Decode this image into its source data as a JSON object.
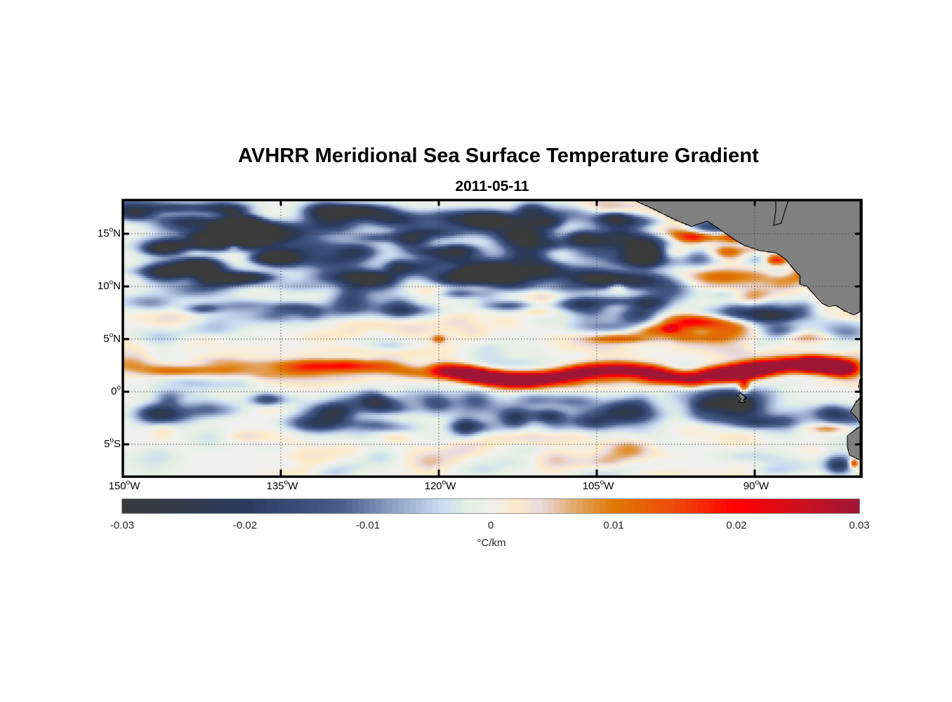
{
  "chart_data": {
    "type": "heatmap",
    "title": "AVHRR Meridional Sea Surface Temperature Gradient",
    "subtitle": "2011-05-11",
    "projection": "equirectangular",
    "lon_range": [
      -150,
      -80
    ],
    "lat_range": [
      -8,
      18
    ],
    "x_ticks": [
      {
        "value": -150,
        "label": "150",
        "suffix": "W"
      },
      {
        "value": -135,
        "label": "135",
        "suffix": "W"
      },
      {
        "value": -120,
        "label": "120",
        "suffix": "W"
      },
      {
        "value": -105,
        "label": "105",
        "suffix": "W"
      },
      {
        "value": -90,
        "label": "90",
        "suffix": "W"
      }
    ],
    "y_ticks": [
      {
        "value": 15,
        "label": "15",
        "suffix": "N"
      },
      {
        "value": 10,
        "label": "10",
        "suffix": "N"
      },
      {
        "value": 5,
        "label": "5",
        "suffix": "N"
      },
      {
        "value": 0,
        "label": "0",
        "suffix": ""
      },
      {
        "value": -5,
        "label": "5",
        "suffix": "S"
      }
    ],
    "grid": true,
    "colorbar": {
      "orientation": "horizontal",
      "location": "bottom",
      "range": [
        -0.03,
        0.03
      ],
      "ticks": [
        -0.03,
        -0.02,
        -0.01,
        0,
        0.01,
        0.02,
        0.03
      ],
      "tick_labels": [
        "-0.03",
        "-0.02",
        "-0.01",
        "0",
        "0.01",
        "0.02",
        "0.03"
      ],
      "unit_label": "°C/km",
      "colormap_stops": [
        {
          "value": -0.03,
          "color": "#3b3b3b"
        },
        {
          "value": -0.02,
          "color": "#2a3a5e"
        },
        {
          "value": -0.012,
          "color": "#4a5f8e"
        },
        {
          "value": -0.008,
          "color": "#8e9fc4"
        },
        {
          "value": -0.004,
          "color": "#c9dcf2"
        },
        {
          "value": -0.002,
          "color": "#e2eee4"
        },
        {
          "value": 0,
          "color": "#f0f0f0"
        },
        {
          "value": 0.002,
          "color": "#fdebc9"
        },
        {
          "value": 0.004,
          "color": "#ebdbe0"
        },
        {
          "value": 0.007,
          "color": "#e3a766"
        },
        {
          "value": 0.01,
          "color": "#df7a05"
        },
        {
          "value": 0.015,
          "color": "#ee4a0a"
        },
        {
          "value": 0.02,
          "color": "#ff0000"
        },
        {
          "value": 0.025,
          "color": "#d0101e"
        },
        {
          "value": 0.03,
          "color": "#9e1636"
        }
      ]
    },
    "features": [
      {
        "name": "equatorial warm front band",
        "lon": [
          -120,
          -81
        ],
        "lat": [
          1,
          3
        ],
        "value": 0.018
      },
      {
        "name": "strong front core east",
        "lon": [
          -84,
          -81
        ],
        "lat": [
          1.5,
          3
        ],
        "value": 0.028
      },
      {
        "name": "strong front core 91W",
        "lon": [
          -92,
          -90
        ],
        "lat": [
          2,
          3
        ],
        "value": 0.025
      },
      {
        "name": "northern cold band",
        "lon": [
          -150,
          -100
        ],
        "lat": [
          11,
          18
        ],
        "value": -0.016
      },
      {
        "name": "south-equatorial cold band",
        "lon": [
          -145,
          -82
        ],
        "lat": [
          -2,
          -1
        ],
        "value": -0.009
      },
      {
        "name": "weak western warm band",
        "lon": [
          -150,
          -120
        ],
        "lat": [
          1,
          3
        ],
        "value": 0.004
      }
    ],
    "land_color": "#808080",
    "land": [
      "Central America",
      "Galapagos",
      "South America coast"
    ]
  }
}
